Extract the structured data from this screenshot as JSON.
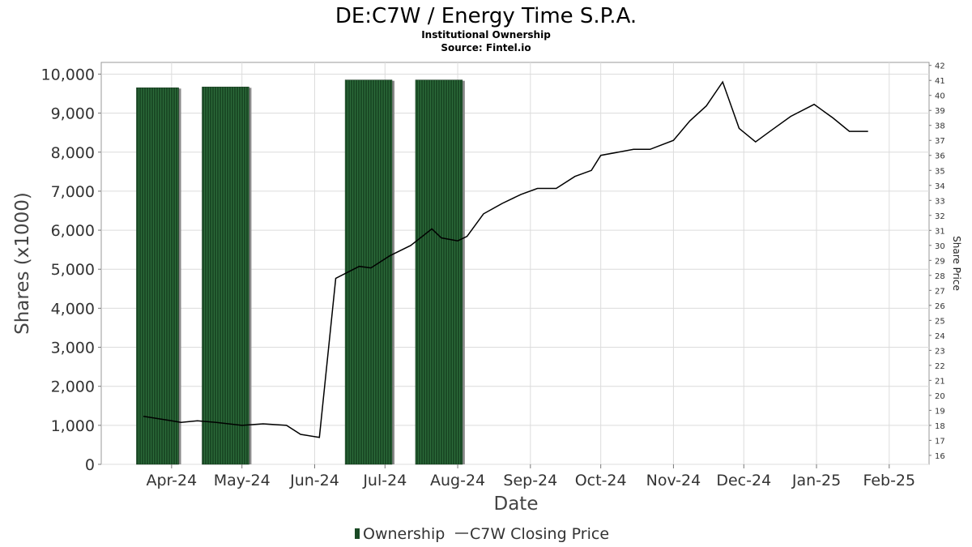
{
  "title": "DE:C7W / Energy Time S.P.A.",
  "subtitle_1": "Institutional Ownership",
  "subtitle_2": "Source: Fintel.io",
  "colors": {
    "bar_fill": "#1a4a25",
    "bar_stripe": "#2c6b3a",
    "bar_shadow": "#8a8a8a",
    "line": "#000000"
  },
  "chart_data": {
    "type": "bar",
    "xlabel": "Date",
    "ylabel": "Shares (x1000)",
    "y2label": "Share Price",
    "ylim": [
      0,
      10300
    ],
    "y2lim": [
      15.4,
      42.2
    ],
    "grid": true,
    "legend_position": "bottom-center",
    "x_ticks": [
      "Apr-24",
      "May-24",
      "Jun-24",
      "Jul-24",
      "Aug-24",
      "Sep-24",
      "Oct-24",
      "Nov-24",
      "Dec-24",
      "Jan-25",
      "Feb-25"
    ],
    "y_ticks": [
      "0",
      "1,000",
      "2,000",
      "3,000",
      "4,000",
      "5,000",
      "6,000",
      "7,000",
      "8,000",
      "9,000",
      "10,000"
    ],
    "y2_ticks": [
      "16",
      "17",
      "18",
      "19",
      "20",
      "21",
      "22",
      "23",
      "24",
      "25",
      "26",
      "27",
      "28",
      "29",
      "30",
      "31",
      "32",
      "33",
      "34",
      "35",
      "36",
      "37",
      "38",
      "39",
      "40",
      "41",
      "42"
    ],
    "bars": {
      "name": "Ownership",
      "dates": [
        [
          "2024-03-17",
          "2024-04-04"
        ],
        [
          "2024-04-14",
          "2024-05-04"
        ],
        [
          "2024-06-14",
          "2024-07-04"
        ],
        [
          "2024-07-14",
          "2024-08-03"
        ]
      ],
      "values": [
        9650,
        9670,
        9850,
        9850
      ]
    },
    "line": {
      "name": "C7W Closing Price",
      "dates": [
        "2024-03-20",
        "2024-04-01",
        "2024-04-05",
        "2024-04-12",
        "2024-04-20",
        "2024-05-01",
        "2024-05-10",
        "2024-05-20",
        "2024-05-26",
        "2024-06-03",
        "2024-06-10",
        "2024-06-20",
        "2024-06-25",
        "2024-07-03",
        "2024-07-12",
        "2024-07-21",
        "2024-07-25",
        "2024-08-01",
        "2024-08-05",
        "2024-08-12",
        "2024-08-20",
        "2024-08-28",
        "2024-09-04",
        "2024-09-12",
        "2024-09-20",
        "2024-09-27",
        "2024-10-01",
        "2024-10-15",
        "2024-10-22",
        "2024-11-01",
        "2024-11-08",
        "2024-11-15",
        "2024-11-22",
        "2024-11-29",
        "2024-12-06",
        "2024-12-13",
        "2024-12-21",
        "2024-12-31",
        "2025-01-08",
        "2025-01-15",
        "2025-01-23"
      ],
      "values": [
        18.6,
        18.3,
        18.2,
        18.3,
        18.2,
        18.0,
        18.1,
        18.0,
        17.4,
        17.2,
        27.8,
        28.6,
        28.5,
        29.3,
        30.0,
        31.1,
        30.5,
        30.3,
        30.6,
        32.1,
        32.8,
        33.4,
        33.8,
        33.8,
        34.6,
        35.0,
        36.0,
        36.4,
        36.4,
        37.0,
        38.3,
        39.3,
        40.9,
        37.8,
        36.9,
        37.7,
        38.6,
        39.4,
        38.5,
        37.6,
        37.6
      ]
    }
  }
}
